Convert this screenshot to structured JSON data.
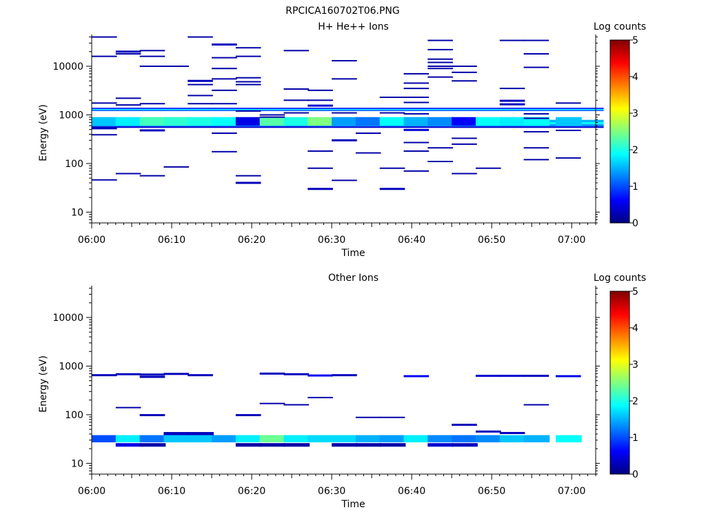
{
  "figure_title": "RPCICA160702T06.PNG",
  "chart_data": [
    {
      "type": "heatmap",
      "title": "H+ He++ Ions",
      "xlabel": "Time",
      "ylabel": "Energy (eV)",
      "x_scale": "time",
      "y_scale": "log",
      "xlim": [
        "06:00",
        "07:03"
      ],
      "ylim": [
        6,
        45000
      ],
      "x_ticks": [
        "06:00",
        "06:10",
        "06:20",
        "06:30",
        "06:40",
        "06:50",
        "07:00"
      ],
      "y_ticks": [
        {
          "value": 10,
          "label": "10"
        },
        {
          "value": 100,
          "label": "100"
        },
        {
          "value": 1000,
          "label": "1000"
        },
        {
          "value": 10000,
          "label": "10000"
        }
      ],
      "colorbar": {
        "label": "Log counts",
        "min": 0,
        "max": 5,
        "ticks": [
          "0",
          "1",
          "2",
          "3",
          "4",
          "5"
        ],
        "colormap": "jet"
      },
      "time_bin_minutes": 3.2,
      "persistent_bands": [
        {
          "e_low": 1200,
          "e_high": 1260,
          "level": 1.0
        },
        {
          "e_low": 1260,
          "e_high": 1330,
          "level": 1.8
        },
        {
          "e_low": 1330,
          "e_high": 1400,
          "level": 0.6
        },
        {
          "e_low": 540,
          "e_high": 580,
          "level": 0.4
        },
        {
          "e_low": 580,
          "e_high": 640,
          "level": 1.3
        },
        {
          "e_low": 640,
          "e_high": 710,
          "level": 1.9
        },
        {
          "e_low": 710,
          "e_high": 790,
          "level": 1.5
        }
      ],
      "cells": [
        [
          "06:00",
          40000,
          0.2
        ],
        [
          "06:00",
          16000,
          0.2
        ],
        [
          "06:00",
          1750,
          0.2
        ],
        [
          "06:00",
          530,
          0.3
        ],
        [
          "06:00",
          390,
          0.2
        ],
        [
          "06:00",
          46,
          0.2
        ],
        [
          "06:03",
          20000,
          0.3
        ],
        [
          "06:03",
          18000,
          0.2
        ],
        [
          "06:03",
          2200,
          0.2
        ],
        [
          "06:03",
          1600,
          0.2
        ],
        [
          "06:03",
          62,
          0.2
        ],
        [
          "06:06",
          21000,
          0.2
        ],
        [
          "06:06",
          16000,
          0.2
        ],
        [
          "06:06",
          10000,
          0.2
        ],
        [
          "06:06",
          1700,
          0.2
        ],
        [
          "06:06",
          480,
          0.3
        ],
        [
          "06:06",
          56,
          0.2
        ],
        [
          "06:09",
          10000,
          0.2
        ],
        [
          "06:09",
          85,
          0.2
        ],
        [
          "06:12",
          40000,
          0.2
        ],
        [
          "06:12",
          5000,
          0.3
        ],
        [
          "06:12",
          4200,
          0.2
        ],
        [
          "06:12",
          2500,
          0.2
        ],
        [
          "06:12",
          1700,
          0.2
        ],
        [
          "06:15",
          28000,
          0.3
        ],
        [
          "06:15",
          15000,
          0.2
        ],
        [
          "06:15",
          9000,
          0.2
        ],
        [
          "06:15",
          5500,
          0.2
        ],
        [
          "06:15",
          3200,
          0.2
        ],
        [
          "06:15",
          1700,
          0.2
        ],
        [
          "06:15",
          420,
          0.2
        ],
        [
          "06:15",
          175,
          0.2
        ],
        [
          "06:18",
          24000,
          0.2
        ],
        [
          "06:18",
          16000,
          0.2
        ],
        [
          "06:18",
          5800,
          0.2
        ],
        [
          "06:18",
          4800,
          0.2
        ],
        [
          "06:18",
          4200,
          0.2
        ],
        [
          "06:18",
          1200,
          0.2
        ],
        [
          "06:18",
          56,
          0.2
        ],
        [
          "06:18",
          40,
          0.3
        ],
        [
          "06:21",
          1000,
          0.2
        ],
        [
          "06:21",
          900,
          0.2
        ],
        [
          "06:24",
          21000,
          0.2
        ],
        [
          "06:24",
          3400,
          0.2
        ],
        [
          "06:24",
          2000,
          0.2
        ],
        [
          "06:24",
          1100,
          0.2
        ],
        [
          "06:27",
          3200,
          0.2
        ],
        [
          "06:27",
          2000,
          0.2
        ],
        [
          "06:27",
          1550,
          0.4
        ],
        [
          "06:27",
          180,
          0.2
        ],
        [
          "06:27",
          80,
          0.2
        ],
        [
          "06:27",
          30,
          0.3
        ],
        [
          "06:30",
          13000,
          0.2
        ],
        [
          "06:30",
          5500,
          0.2
        ],
        [
          "06:30",
          1100,
          0.2
        ],
        [
          "06:30",
          300,
          0.3
        ],
        [
          "06:30",
          45,
          0.2
        ],
        [
          "06:33",
          420,
          0.2
        ],
        [
          "06:33",
          165,
          0.2
        ],
        [
          "06:36",
          2300,
          0.2
        ],
        [
          "06:36",
          1100,
          0.2
        ],
        [
          "06:36",
          80,
          0.2
        ],
        [
          "06:36",
          30,
          0.3
        ],
        [
          "06:39",
          7000,
          0.2
        ],
        [
          "06:39",
          4500,
          0.2
        ],
        [
          "06:39",
          3500,
          0.2
        ],
        [
          "06:39",
          2300,
          0.2
        ],
        [
          "06:39",
          1800,
          0.2
        ],
        [
          "06:39",
          1050,
          0.2
        ],
        [
          "06:39",
          490,
          0.4
        ],
        [
          "06:39",
          270,
          0.2
        ],
        [
          "06:39",
          180,
          0.2
        ],
        [
          "06:39",
          70,
          0.2
        ],
        [
          "06:42",
          34000,
          0.2
        ],
        [
          "06:42",
          22000,
          0.2
        ],
        [
          "06:42",
          14000,
          0.2
        ],
        [
          "06:42",
          12000,
          0.2
        ],
        [
          "06:42",
          10000,
          0.2
        ],
        [
          "06:42",
          9000,
          0.2
        ],
        [
          "06:42",
          6000,
          0.2
        ],
        [
          "06:42",
          210,
          0.2
        ],
        [
          "06:42",
          110,
          0.2
        ],
        [
          "06:45",
          10000,
          0.2
        ],
        [
          "06:45",
          7500,
          0.2
        ],
        [
          "06:45",
          5000,
          0.2
        ],
        [
          "06:45",
          330,
          0.2
        ],
        [
          "06:45",
          250,
          0.2
        ],
        [
          "06:45",
          62,
          0.2
        ],
        [
          "06:48",
          80,
          0.2
        ],
        [
          "06:51",
          34000,
          0.2
        ],
        [
          "06:51",
          3500,
          0.2
        ],
        [
          "06:51",
          1950,
          0.3
        ],
        [
          "06:51",
          1650,
          0.3
        ],
        [
          "06:54",
          34000,
          0.2
        ],
        [
          "06:54",
          18000,
          0.2
        ],
        [
          "06:54",
          9500,
          0.2
        ],
        [
          "06:54",
          1050,
          0.2
        ],
        [
          "06:54",
          850,
          0.2
        ],
        [
          "06:54",
          450,
          0.2
        ],
        [
          "06:54",
          210,
          0.2
        ],
        [
          "06:54",
          120,
          0.2
        ],
        [
          "06:58",
          1750,
          0.2
        ],
        [
          "06:58",
          480,
          0.2
        ],
        [
          "06:58",
          130,
          0.2
        ]
      ],
      "patches": [
        [
          "06:00",
          600,
          900,
          1.6
        ],
        [
          "06:03",
          600,
          900,
          1.8
        ],
        [
          "06:06",
          600,
          900,
          2.2
        ],
        [
          "06:09",
          600,
          900,
          2.1
        ],
        [
          "06:12",
          600,
          900,
          2.0
        ],
        [
          "06:15",
          600,
          900,
          1.9
        ],
        [
          "06:18",
          600,
          900,
          0.5
        ],
        [
          "06:21",
          600,
          900,
          2.3
        ],
        [
          "06:24",
          600,
          900,
          2.0
        ],
        [
          "06:27",
          600,
          900,
          2.5
        ],
        [
          "06:30",
          600,
          900,
          1.4
        ],
        [
          "06:33",
          600,
          900,
          1.2
        ],
        [
          "06:36",
          600,
          900,
          1.9
        ],
        [
          "06:39",
          600,
          900,
          1.5
        ],
        [
          "06:42",
          600,
          900,
          1.3
        ],
        [
          "06:45",
          600,
          900,
          0.6
        ],
        [
          "06:48",
          600,
          900,
          1.9
        ],
        [
          "06:51",
          600,
          900,
          1.8
        ],
        [
          "06:54",
          600,
          900,
          1.9
        ],
        [
          "06:58",
          600,
          900,
          1.6
        ]
      ]
    },
    {
      "type": "heatmap",
      "title": "Other Ions",
      "xlabel": "Time",
      "ylabel": "Energy (eV)",
      "x_scale": "time",
      "y_scale": "log",
      "xlim": [
        "06:00",
        "07:03"
      ],
      "ylim": [
        6,
        45000
      ],
      "x_ticks": [
        "06:00",
        "06:10",
        "06:20",
        "06:30",
        "06:40",
        "06:50",
        "07:00"
      ],
      "y_ticks": [
        {
          "value": 10,
          "label": "10"
        },
        {
          "value": 100,
          "label": "100"
        },
        {
          "value": 1000,
          "label": "1000"
        },
        {
          "value": 10000,
          "label": "10000"
        }
      ],
      "colorbar": {
        "label": "Log counts",
        "min": 0,
        "max": 5,
        "ticks": [
          "0",
          "1",
          "2",
          "3",
          "4",
          "5"
        ],
        "colormap": "jet"
      },
      "time_bin_minutes": 3.2,
      "persistent_bands": [],
      "cells": [
        [
          "06:00",
          650,
          0.3
        ],
        [
          "06:03",
          680,
          0.3
        ],
        [
          "06:03",
          140,
          0.2
        ],
        [
          "06:06",
          670,
          0.3
        ],
        [
          "06:06",
          600,
          0.3
        ],
        [
          "06:06",
          98,
          0.3
        ],
        [
          "06:09",
          690,
          0.3
        ],
        [
          "06:12",
          650,
          0.3
        ],
        [
          "06:18",
          98,
          0.3
        ],
        [
          "06:21",
          700,
          0.3
        ],
        [
          "06:21",
          170,
          0.2
        ],
        [
          "06:24",
          680,
          0.3
        ],
        [
          "06:24",
          160,
          0.2
        ],
        [
          "06:27",
          640,
          0.6
        ],
        [
          "06:27",
          225,
          0.2
        ],
        [
          "06:30",
          650,
          0.3
        ],
        [
          "06:33",
          88,
          0.2
        ],
        [
          "06:36",
          88,
          0.2
        ],
        [
          "06:39",
          620,
          0.6
        ],
        [
          "06:45",
          62,
          0.3
        ],
        [
          "06:48",
          630,
          0.4
        ],
        [
          "06:48",
          45,
          0.3
        ],
        [
          "06:51",
          630,
          0.4
        ],
        [
          "06:51",
          42,
          0.3
        ],
        [
          "06:54",
          630,
          0.3
        ],
        [
          "06:54",
          160,
          0.2
        ],
        [
          "06:58",
          620,
          0.5
        ]
      ],
      "patches": [
        [
          "06:00",
          27,
          38,
          1.0
        ],
        [
          "06:03",
          27,
          38,
          1.8
        ],
        [
          "06:06",
          27,
          38,
          1.2
        ],
        [
          "06:09",
          27,
          38,
          1.6
        ],
        [
          "06:12",
          27,
          38,
          1.6
        ],
        [
          "06:15",
          27,
          38,
          1.4
        ],
        [
          "06:18",
          27,
          38,
          1.8
        ],
        [
          "06:21",
          27,
          38,
          2.4
        ],
        [
          "06:24",
          27,
          38,
          1.8
        ],
        [
          "06:27",
          27,
          38,
          1.7
        ],
        [
          "06:30",
          27,
          38,
          1.7
        ],
        [
          "06:33",
          27,
          38,
          1.5
        ],
        [
          "06:36",
          27,
          38,
          1.4
        ],
        [
          "06:39",
          27,
          38,
          1.8
        ],
        [
          "06:42",
          27,
          38,
          1.3
        ],
        [
          "06:45",
          27,
          38,
          1.2
        ],
        [
          "06:48",
          27,
          38,
          1.3
        ],
        [
          "06:51",
          27,
          38,
          1.6
        ],
        [
          "06:54",
          27,
          38,
          1.5
        ],
        [
          "06:58",
          27,
          38,
          1.9
        ],
        [
          "06:03",
          22,
          26,
          0.5
        ],
        [
          "06:06",
          22,
          26,
          0.2
        ],
        [
          "06:09",
          38,
          44,
          0.3
        ],
        [
          "06:12",
          38,
          44,
          0.3
        ],
        [
          "06:18",
          22,
          26,
          0.2
        ],
        [
          "06:21",
          22,
          26,
          0.2
        ],
        [
          "06:24",
          22,
          26,
          0.2
        ],
        [
          "06:30",
          22,
          26,
          0.2
        ],
        [
          "06:33",
          22,
          26,
          0.2
        ],
        [
          "06:36",
          22,
          26,
          0.2
        ],
        [
          "06:42",
          22,
          26,
          0.4
        ],
        [
          "06:45",
          22,
          26,
          0.3
        ]
      ]
    }
  ]
}
